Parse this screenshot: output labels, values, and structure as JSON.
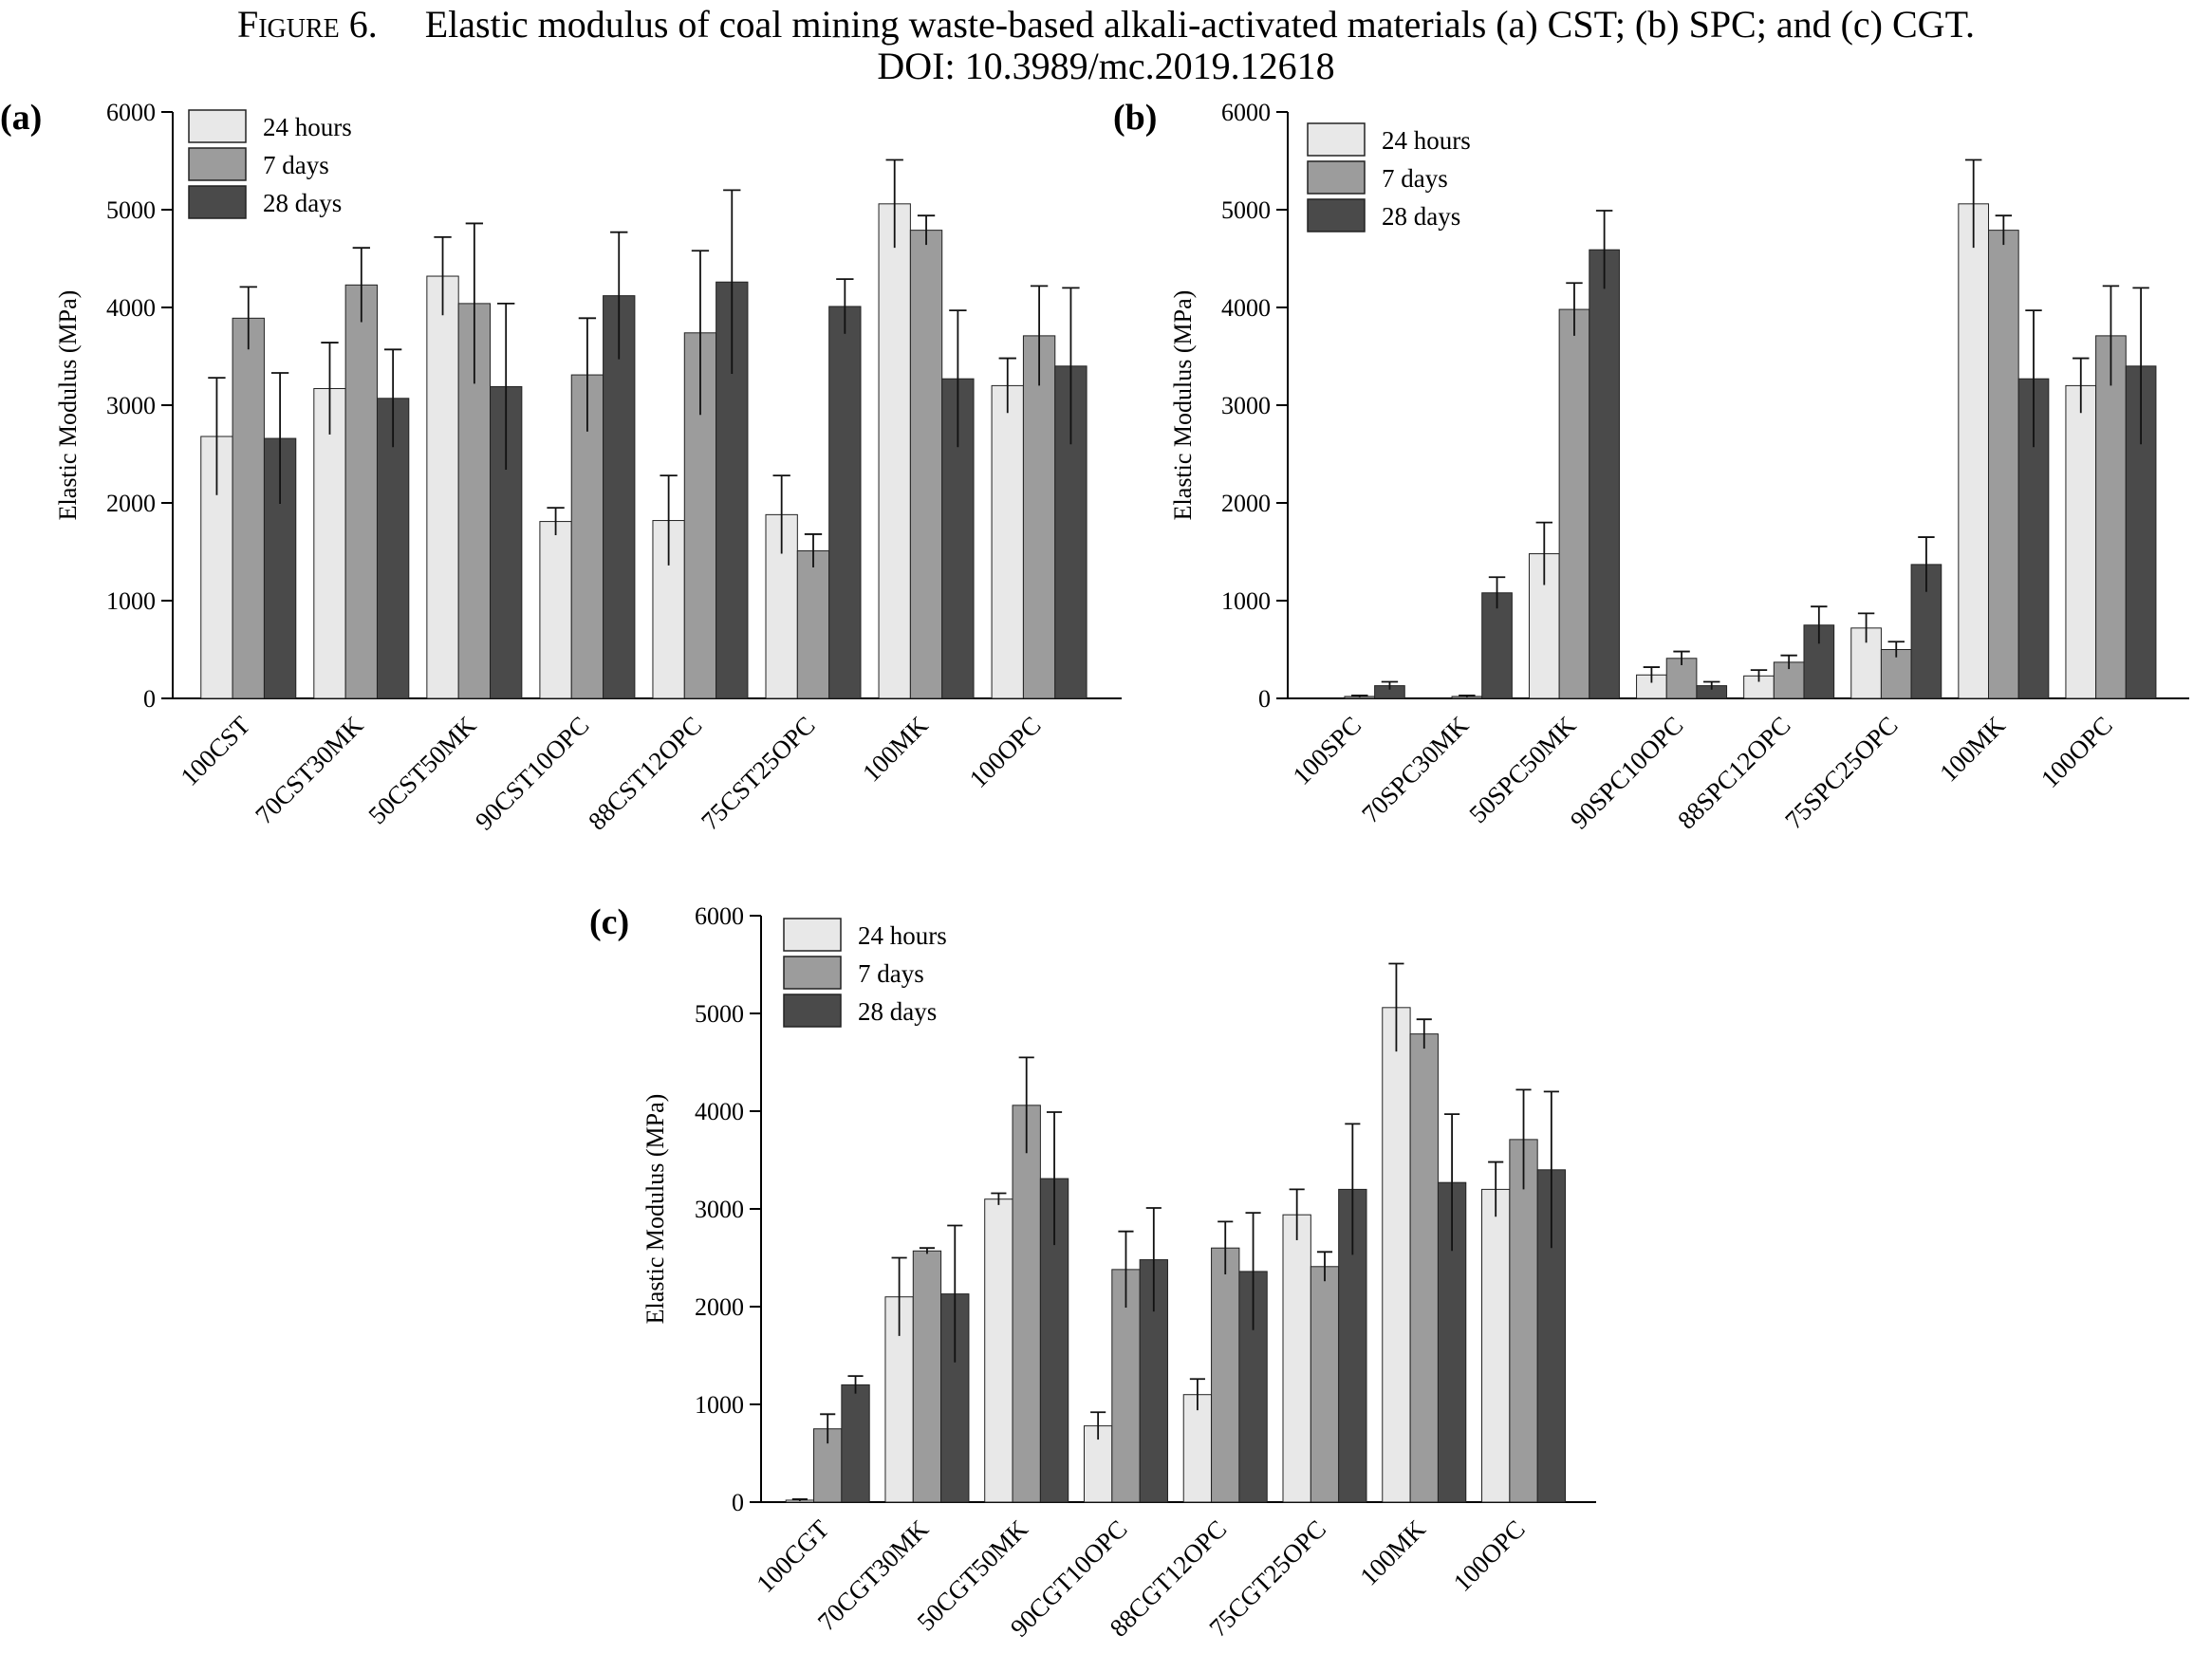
{
  "caption": {
    "figure_label": "Figure 6.",
    "text": "Elastic modulus of coal mining waste-based alkali-activated materials (a) CST; (b) SPC; and (c) CGT.",
    "doi": "DOI: 10.3989/mc.2019.12618"
  },
  "colors": {
    "24 hours": "#e8e8e8",
    "7 days": "#9c9c9c",
    "28 days": "#4a4a4a",
    "axis": "#000000"
  },
  "chart_data": [
    {
      "panel": "(a)",
      "type": "bar",
      "ylabel": "Elastic Modulus (MPa)",
      "ylim": [
        0,
        6000
      ],
      "yticks": [
        0,
        1000,
        2000,
        3000,
        4000,
        5000,
        6000
      ],
      "legend_position": "top-left",
      "categories": [
        "100CST",
        "70CST30MK",
        "50CST50MK",
        "90CST10OPC",
        "88CST12OPC",
        "75CST25OPC",
        "100MK",
        "100OPC"
      ],
      "series": [
        {
          "name": "24 hours",
          "values": [
            2680,
            3170,
            4320,
            1810,
            1820,
            1880,
            5060,
            3200
          ],
          "errors": [
            600,
            470,
            400,
            140,
            460,
            400,
            450,
            280
          ]
        },
        {
          "name": "7 days",
          "values": [
            3890,
            4230,
            4040,
            3310,
            3740,
            1510,
            4790,
            3710
          ],
          "errors": [
            320,
            380,
            820,
            580,
            840,
            170,
            150,
            510
          ]
        },
        {
          "name": "28 days",
          "values": [
            2660,
            3070,
            3190,
            4120,
            4260,
            4010,
            3270,
            3400
          ],
          "errors": [
            670,
            500,
            850,
            650,
            940,
            280,
            700,
            800
          ]
        }
      ]
    },
    {
      "panel": "(b)",
      "type": "bar",
      "ylabel": "Elastic Modulus (MPa)",
      "ylim": [
        0,
        6000
      ],
      "yticks": [
        0,
        1000,
        2000,
        3000,
        4000,
        5000,
        6000
      ],
      "legend_position": "top-left",
      "categories": [
        "100SPC",
        "70SPC30MK",
        "50SPC50MK",
        "90SPC10OPC",
        "88SPC12OPC",
        "75SPC25OPC",
        "100MK",
        "100OPC"
      ],
      "series": [
        {
          "name": "24 hours",
          "values": [
            0,
            0,
            1480,
            240,
            230,
            720,
            5060,
            3200
          ],
          "errors": [
            0,
            0,
            320,
            80,
            60,
            150,
            450,
            280
          ]
        },
        {
          "name": "7 days",
          "values": [
            20,
            20,
            3980,
            410,
            370,
            500,
            4790,
            3710
          ],
          "errors": [
            10,
            10,
            270,
            70,
            70,
            80,
            150,
            510
          ]
        },
        {
          "name": "28 days",
          "values": [
            130,
            1080,
            4590,
            130,
            750,
            1370,
            3270,
            3400
          ],
          "errors": [
            40,
            160,
            400,
            40,
            190,
            280,
            700,
            800
          ]
        }
      ]
    },
    {
      "panel": "(c)",
      "type": "bar",
      "ylabel": "Elastic Modulus (MPa)",
      "ylim": [
        0,
        6000
      ],
      "yticks": [
        0,
        1000,
        2000,
        3000,
        4000,
        5000,
        6000
      ],
      "legend_position": "top-left",
      "categories": [
        "100CGT",
        "70CGT30MK",
        "50CGT50MK",
        "90CGT10OPC",
        "88CGT12OPC",
        "75CGT25OPC",
        "100MK",
        "100OPC"
      ],
      "series": [
        {
          "name": "24 hours",
          "values": [
            20,
            2100,
            3100,
            780,
            1100,
            2940,
            5060,
            3200
          ],
          "errors": [
            10,
            400,
            60,
            140,
            160,
            260,
            450,
            280
          ]
        },
        {
          "name": "7 days",
          "values": [
            750,
            2570,
            4060,
            2380,
            2600,
            2410,
            4790,
            3710
          ],
          "errors": [
            150,
            30,
            490,
            390,
            270,
            150,
            150,
            510
          ]
        },
        {
          "name": "28 days",
          "values": [
            1200,
            2130,
            3310,
            2480,
            2360,
            3200,
            3270,
            3400
          ],
          "errors": [
            90,
            700,
            680,
            530,
            600,
            670,
            700,
            800
          ]
        }
      ]
    }
  ]
}
